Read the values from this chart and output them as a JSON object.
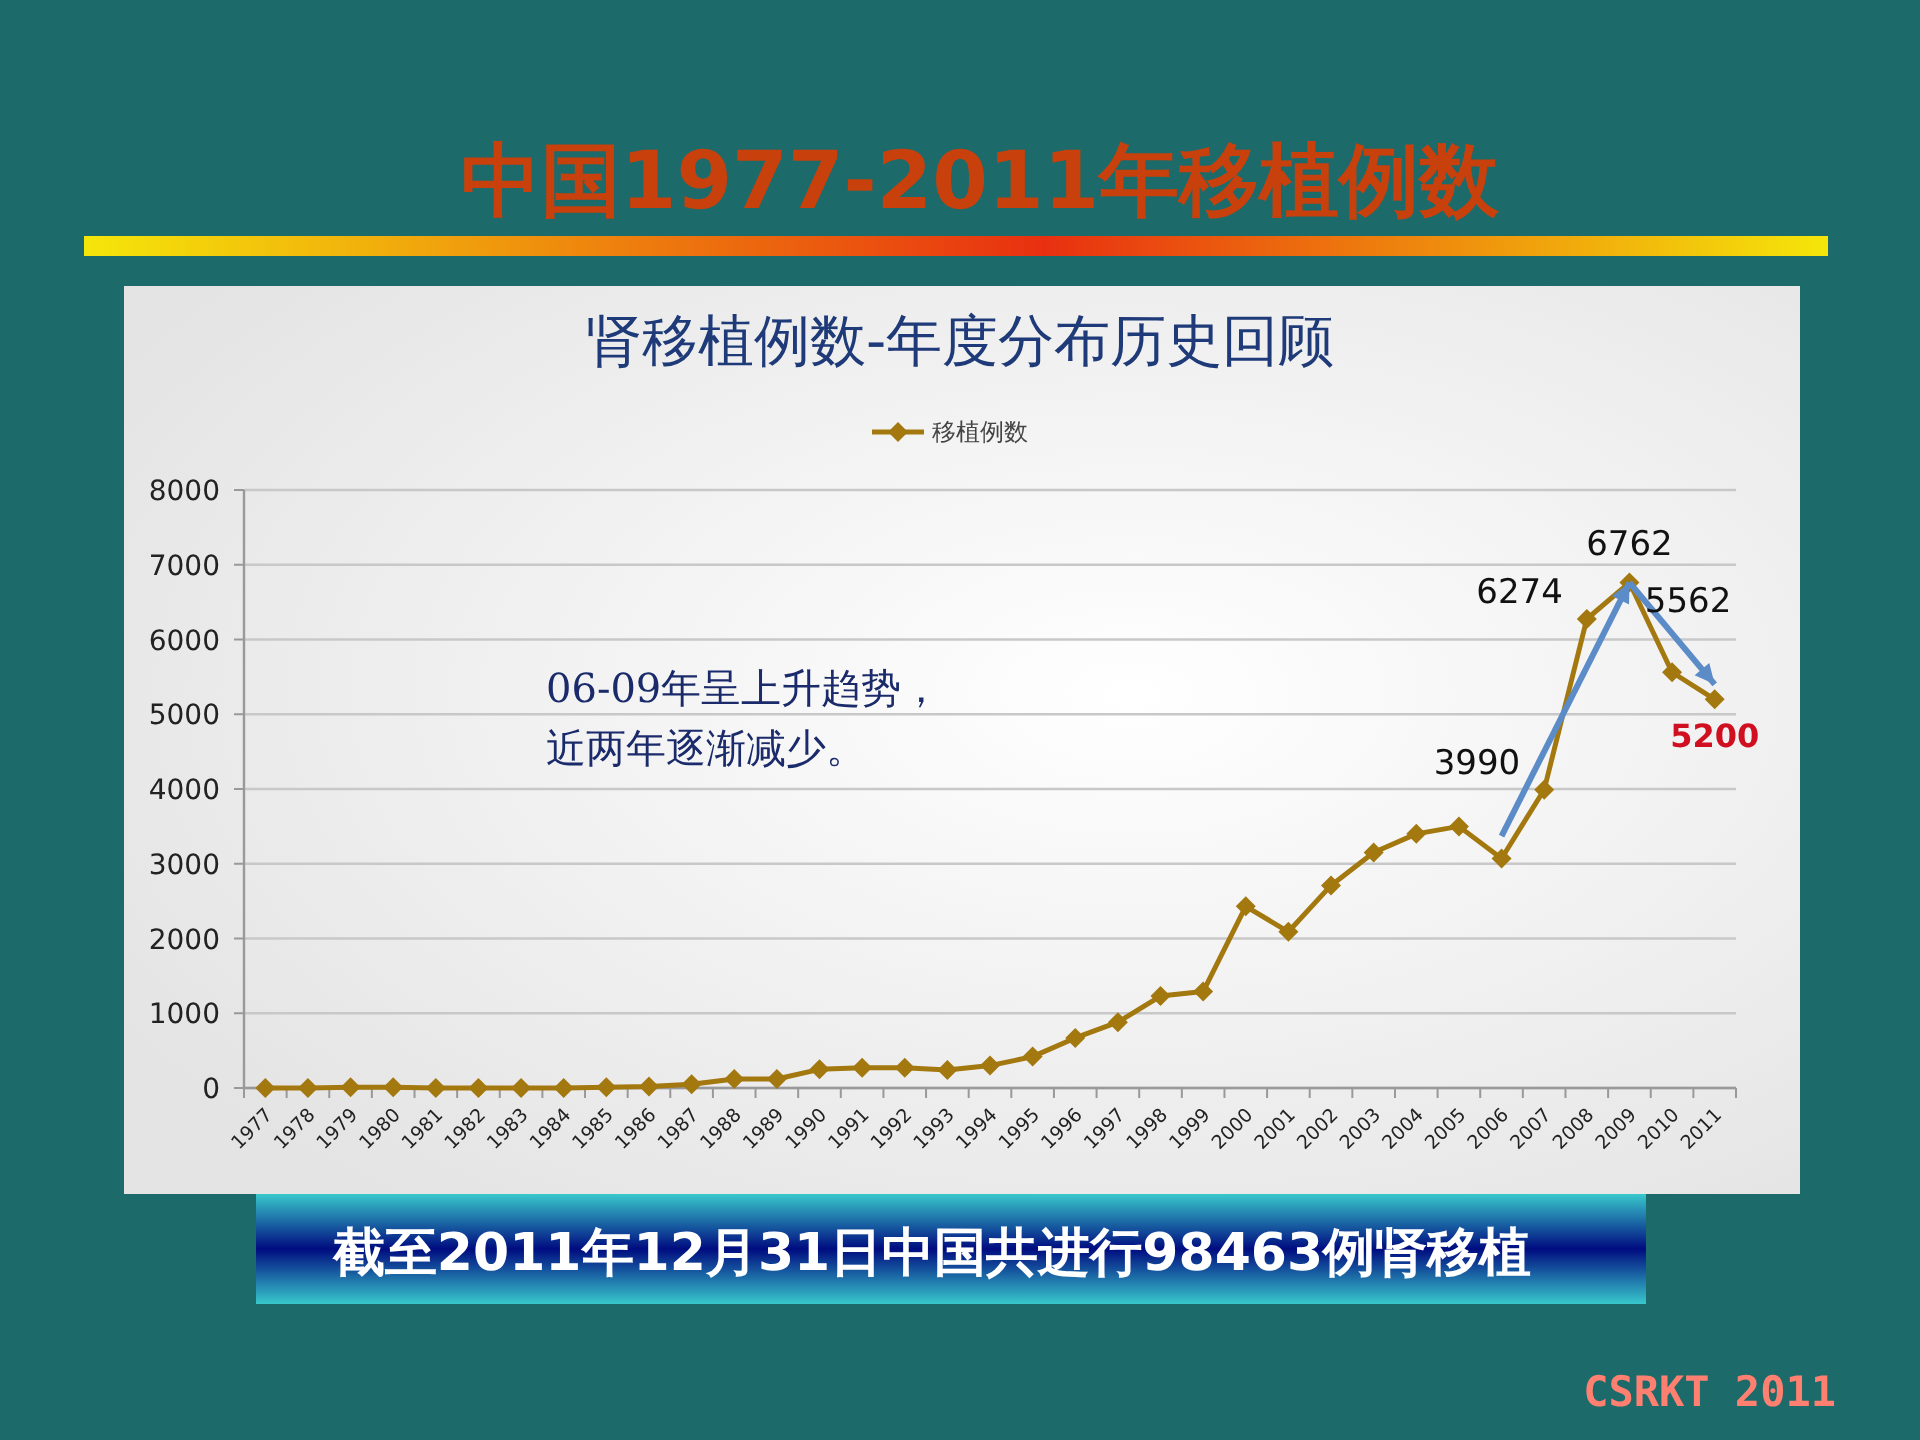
{
  "chart_data": {
    "type": "line",
    "title": "中国1977-2011年移植例数",
    "subtitle": "肾移植例数-年度分布历史回顾",
    "categories": [
      "1977",
      "1978",
      "1979",
      "1980",
      "1981",
      "1982",
      "1983",
      "1984",
      "1985",
      "1986",
      "1987",
      "1988",
      "1989",
      "1990",
      "1991",
      "1992",
      "1993",
      "1994",
      "1995",
      "1996",
      "1997",
      "1998",
      "1999",
      "2000",
      "2001",
      "2002",
      "2003",
      "2004",
      "2005",
      "2006",
      "2007",
      "2008",
      "2009",
      "2010",
      "2011"
    ],
    "series": [
      {
        "name": "移植例数",
        "color": "#a3780f",
        "values": [
          0,
          0,
          10,
          10,
          0,
          0,
          0,
          0,
          10,
          20,
          50,
          120,
          120,
          250,
          270,
          270,
          240,
          300,
          420,
          670,
          880,
          1230,
          1290,
          2430,
          2090,
          2710,
          3150,
          3400,
          3500,
          3070,
          3990,
          6274,
          6762,
          5562,
          5200
        ],
        "value_labels": [
          null,
          null,
          null,
          null,
          null,
          null,
          null,
          null,
          null,
          null,
          null,
          null,
          null,
          null,
          null,
          null,
          null,
          null,
          null,
          null,
          null,
          null,
          null,
          null,
          null,
          null,
          null,
          null,
          null,
          null,
          "3990",
          "6274",
          "6762",
          "5562",
          "5200"
        ]
      }
    ],
    "ylim": [
      0,
      8000
    ],
    "yticks": [
      0,
      1000,
      2000,
      3000,
      4000,
      5000,
      6000,
      7000,
      8000
    ],
    "grid": "y",
    "legend": "top",
    "marker": "diamond",
    "line_style": "solid",
    "annotations": [
      "06-09年呈上升趋势，",
      "近两年逐渐减少。",
      "截至2011年12月31日中国共进行98463例肾移植",
      "CSRKT 2011"
    ]
  }
}
